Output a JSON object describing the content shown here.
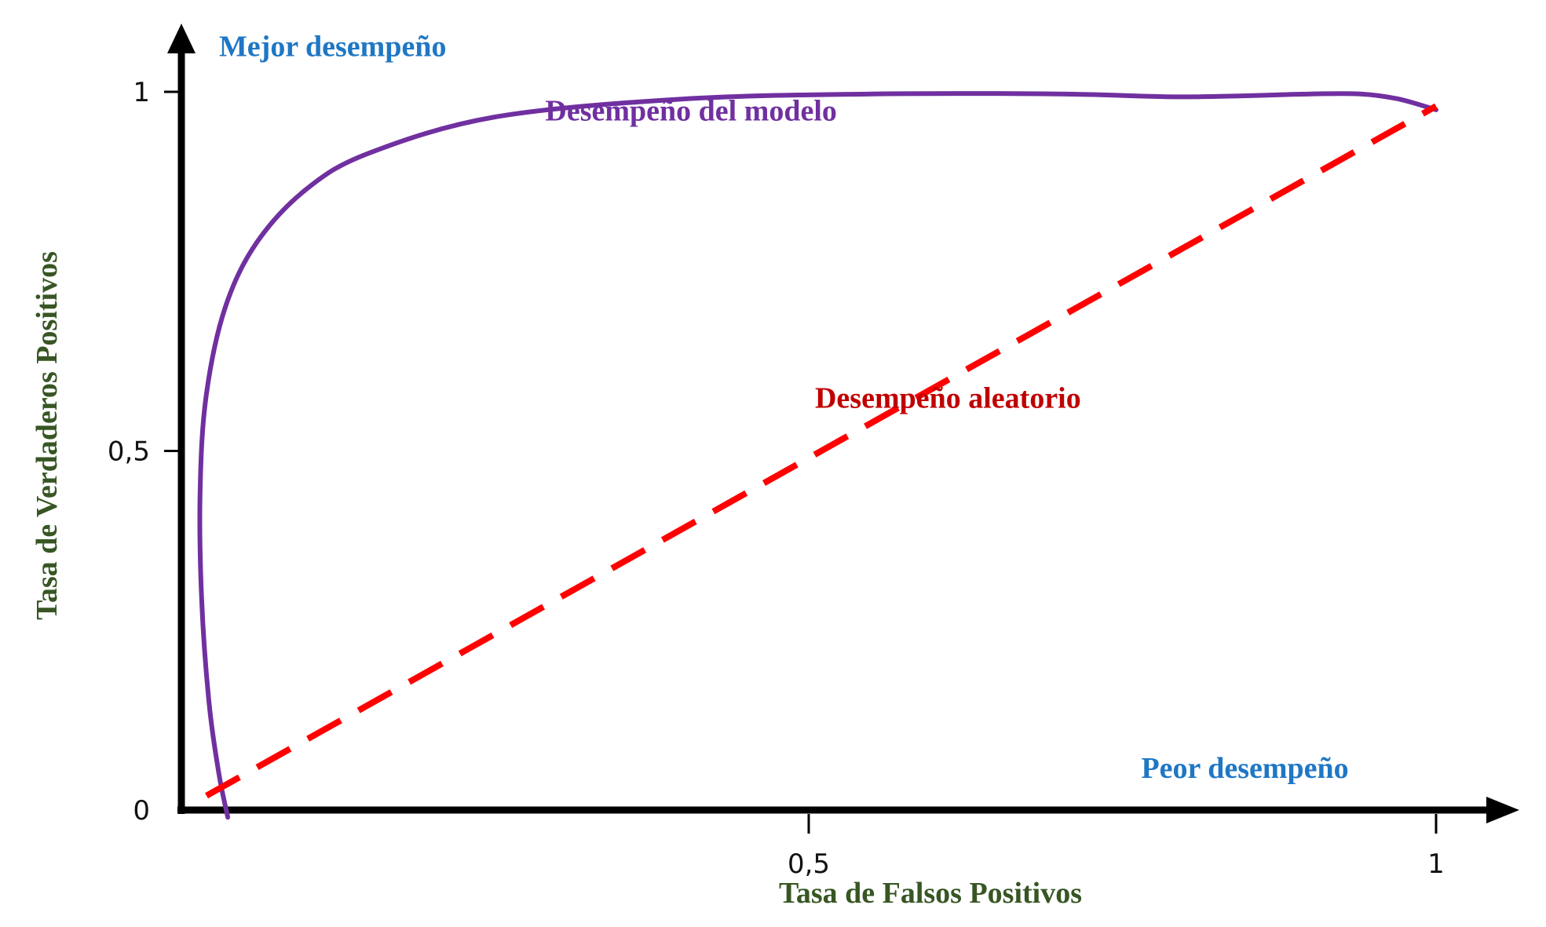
{
  "chart_data": {
    "type": "line",
    "title": "",
    "xlabel": "Tasa de Falsos Positivos",
    "ylabel": "Tasa de Verdaderos Positivos",
    "xlim": [
      0,
      1
    ],
    "ylim": [
      0,
      1
    ],
    "x_ticks": [
      {
        "value": 0.5,
        "label": "0,5"
      },
      {
        "value": 1,
        "label": "1"
      }
    ],
    "y_ticks": [
      {
        "value": 0,
        "label": "0"
      },
      {
        "value": 0.5,
        "label": "0,5"
      },
      {
        "value": 1,
        "label": "1"
      }
    ],
    "grid": false,
    "series": [
      {
        "color": "#7030a0",
        "dash": "solid",
        "points": [
          [
            0.037,
            -0.01
          ],
          [
            0.03,
            0.05
          ],
          [
            0.022,
            0.15
          ],
          [
            0.016,
            0.3
          ],
          [
            0.015,
            0.45
          ],
          [
            0.02,
            0.58
          ],
          [
            0.035,
            0.7
          ],
          [
            0.06,
            0.79
          ],
          [
            0.1,
            0.865
          ],
          [
            0.15,
            0.915
          ],
          [
            0.25,
            0.965
          ],
          [
            0.4,
            0.99
          ],
          [
            0.55,
            0.997
          ],
          [
            0.7,
            0.997
          ],
          [
            0.8,
            0.993
          ],
          [
            0.9,
            0.997
          ],
          [
            0.94,
            0.997
          ],
          [
            0.97,
            0.99
          ],
          [
            1.0,
            0.975
          ]
        ]
      },
      {
        "color": "#ff0000",
        "dash": "dashed",
        "points": [
          [
            0.02,
            0.02
          ],
          [
            1.0,
            0.98
          ]
        ]
      }
    ],
    "annotations": [
      {
        "text": "Mejor desempeño",
        "color": "#1f77c4",
        "x": 0.03,
        "y": 1.05
      },
      {
        "text": "Desempeño del modelo",
        "color": "#7030a0",
        "x": 0.29,
        "y": 0.96
      },
      {
        "text": "Desempeño aleatorio",
        "color": "#c00000",
        "x": 0.505,
        "y": 0.56
      },
      {
        "text": "Peor desempeño",
        "color": "#1f77c4",
        "x": 0.765,
        "y": 0.045
      }
    ],
    "axis_title_color": "#375623",
    "axis_color": "#000000"
  }
}
